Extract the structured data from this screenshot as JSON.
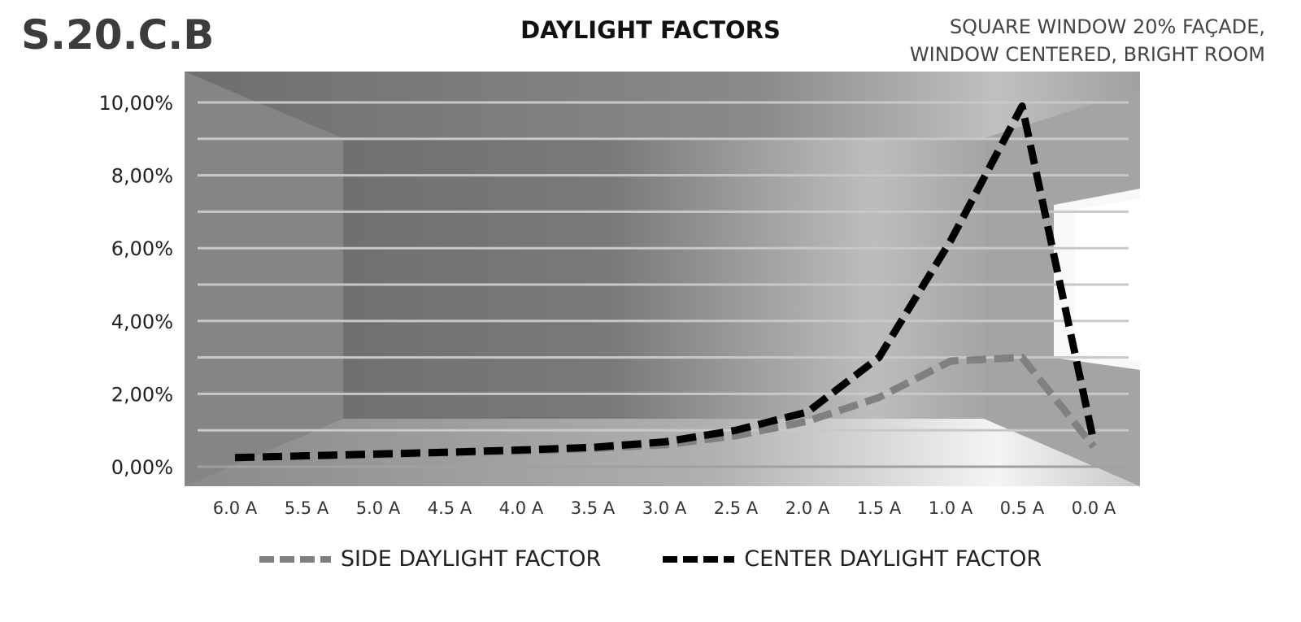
{
  "header": {
    "code": "S.20.C.B",
    "title": "DAYLIGHT FACTORS",
    "subtitle_lines": [
      "SQUARE WINDOW 20% FAÇADE,",
      "WINDOW CENTERED, BRIGHT ROOM"
    ]
  },
  "legend": {
    "side_label": "SIDE DAYLIGHT FACTOR",
    "center_label": "CENTER DAYLIGHT FACTOR"
  },
  "colors": {
    "side": "#808080",
    "center": "#000000",
    "gridline": "#c8c8c8"
  },
  "chart_data": {
    "type": "line",
    "title": "DAYLIGHT FACTORS",
    "subtitle": "SQUARE WINDOW 20% FAÇADE, WINDOW CENTERED, BRIGHT ROOM",
    "xlabel": "",
    "ylabel": "",
    "categories": [
      "6.0 A",
      "5.5 A",
      "5.0 A",
      "4.5 A",
      "4.0 A",
      "3.5 A",
      "3.0 A",
      "2.5 A",
      "2.0 A",
      "1.5 A",
      "1.0 A",
      "0.5 A",
      "0.0 A"
    ],
    "series": [
      {
        "name": "SIDE DAYLIGHT FACTOR",
        "style": "dashed",
        "color": "#808080",
        "values": [
          0.25,
          0.29,
          0.33,
          0.38,
          0.43,
          0.5,
          0.6,
          0.85,
          1.25,
          1.9,
          2.9,
          3.0,
          0.55
        ]
      },
      {
        "name": "CENTER DAYLIGHT FACTOR",
        "style": "dashed",
        "color": "#000000",
        "values": [
          0.25,
          0.3,
          0.35,
          0.4,
          0.46,
          0.53,
          0.68,
          1.0,
          1.5,
          3.0,
          6.2,
          9.9,
          0.7
        ]
      }
    ],
    "yticks": [
      "0,00%",
      "2,00%",
      "4,00%",
      "6,00%",
      "8,00%",
      "10,00%"
    ],
    "ylim": [
      0,
      10
    ],
    "y_unit": "%",
    "grid": true,
    "grid_step": 1,
    "legend_position": "bottom",
    "background": "photo of interior room with window on right"
  }
}
